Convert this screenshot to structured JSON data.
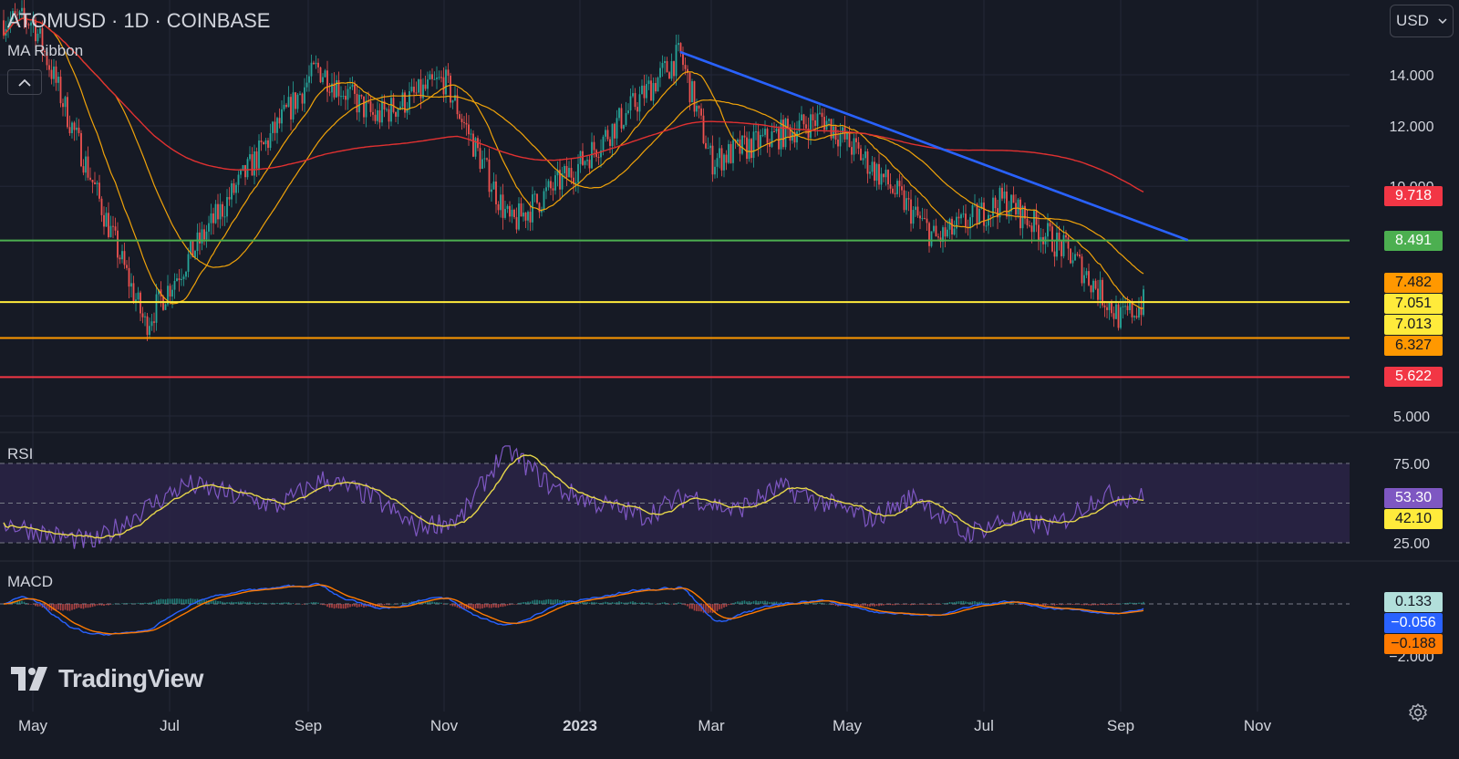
{
  "header": {
    "symbol": "ATOMUSD",
    "interval": "1D",
    "exchange": "COINBASE",
    "separator": "·"
  },
  "indicator_label": "MA Ribbon",
  "collapse_icon": "chevron-up-icon",
  "currency": {
    "label": "USD",
    "icon": "chevron-down-icon"
  },
  "panes": {
    "rsi_title": "RSI",
    "macd_title": "MACD"
  },
  "logo": {
    "text": "TradingView",
    "icon": "tradingview-logo-icon"
  },
  "settings_icon": "gear-icon",
  "colors": {
    "background": "#161a25",
    "grid": "#242838",
    "up": "#26a69a",
    "down": "#ef5350",
    "trendline": "#2962ff",
    "ma_short": "#f0a30a",
    "ma_long": "#e03131",
    "level_green": "#4caf50",
    "level_yellow": "#ffeb3b",
    "level_orange": "#ff9800",
    "level_red": "#f23645",
    "rsi": "#7e57c2",
    "rsi_ma": "#e6d64a",
    "macd": "#2962ff",
    "signal": "#ff7a00"
  },
  "chart_data": [
    {
      "type": "candlestick",
      "title": "ATOMUSD · 1D · COINBASE",
      "x_axis": {
        "ticks": [
          "May",
          "Jul",
          "Sep",
          "Nov",
          "2023",
          "Mar",
          "May",
          "Jul",
          "Sep",
          "Nov"
        ]
      },
      "y_axis": {
        "scale": "log",
        "ticks": [
          14.0,
          12.0,
          10.0,
          5.0
        ],
        "tick_labels": [
          "14.000",
          "12.000",
          "10.000",
          "5.000"
        ]
      },
      "ohlc_approx": [
        {
          "date": "2022-05",
          "close": 16.5
        },
        {
          "date": "2022-06-20",
          "close": 6.6
        },
        {
          "date": "2022-07",
          "close": 7.4
        },
        {
          "date": "2022-09-05",
          "close": 14.3
        },
        {
          "date": "2022-10",
          "close": 12.3
        },
        {
          "date": "2022-11-01",
          "close": 13.8
        },
        {
          "date": "2022-12-01",
          "close": 8.9
        },
        {
          "date": "2023-01",
          "close": 10.7
        },
        {
          "date": "2023-02-15",
          "close": 14.9
        },
        {
          "date": "2023-03-01",
          "close": 10.8
        },
        {
          "date": "2023-04-20",
          "close": 12.3
        },
        {
          "date": "2023-05-15",
          "close": 10.4
        },
        {
          "date": "2023-06-10",
          "close": 8.5
        },
        {
          "date": "2023-07-10",
          "close": 9.6
        },
        {
          "date": "2023-08-10",
          "close": 8.1
        },
        {
          "date": "2023-09-01",
          "close": 6.7
        },
        {
          "date": "2023-09-12",
          "close": 7.05
        }
      ],
      "price_labels": [
        {
          "text": "9.718",
          "value": 9.718,
          "bg": "#f23645",
          "fg": "#ffffff"
        },
        {
          "text": "8.491",
          "value": 8.491,
          "bg": "#4caf50",
          "fg": "#ffffff"
        },
        {
          "text": "7.482",
          "value": 7.482,
          "bg": "#ff9800",
          "fg": "#131722"
        },
        {
          "text": "7.051",
          "value": 7.051,
          "bg": "#ffeb3b",
          "fg": "#131722"
        },
        {
          "text": "7.013",
          "value": 7.013,
          "bg": "#ffeb3b",
          "fg": "#131722"
        },
        {
          "text": "6.327",
          "value": 6.327,
          "bg": "#ff9800",
          "fg": "#131722"
        },
        {
          "text": "5.622",
          "value": 5.622,
          "bg": "#f23645",
          "fg": "#ffffff"
        }
      ],
      "horizontal_levels": [
        8.491,
        7.051,
        6.327,
        5.622
      ],
      "trendline": {
        "from": {
          "date": "2023-02-15",
          "value": 15.0
        },
        "to": {
          "date": "2023-10-01",
          "value": 8.5
        }
      }
    },
    {
      "type": "line",
      "title": "RSI",
      "y_axis": {
        "ticks": [
          75.0,
          25.0
        ],
        "tick_labels": [
          "75.00",
          "25.00"
        ]
      },
      "values_approx": [
        38,
        30,
        25,
        45,
        62,
        55,
        48,
        65,
        55,
        35,
        40,
        85,
        60,
        50,
        42,
        55,
        45,
        60,
        50,
        40,
        55,
        30,
        40,
        35,
        55,
        53.3
      ],
      "last": {
        "rsi": 53.3,
        "rsi_ma": 42.1
      },
      "labels": [
        {
          "text": "53.30",
          "bg": "#7e57c2",
          "fg": "#ffffff"
        },
        {
          "text": "42.10",
          "bg": "#ffeb3b",
          "fg": "#131722"
        }
      ]
    },
    {
      "type": "line",
      "title": "MACD",
      "y_axis": {
        "ticks": [
          -2.0
        ],
        "tick_labels": [
          "−2.000"
        ]
      },
      "labels": [
        {
          "text": "0.133",
          "bg": "#b2dfdb",
          "fg": "#131722"
        },
        {
          "text": "−0.056",
          "bg": "#2962ff",
          "fg": "#ffffff"
        },
        {
          "text": "−0.188",
          "bg": "#ff7a00",
          "fg": "#131722"
        }
      ]
    }
  ]
}
